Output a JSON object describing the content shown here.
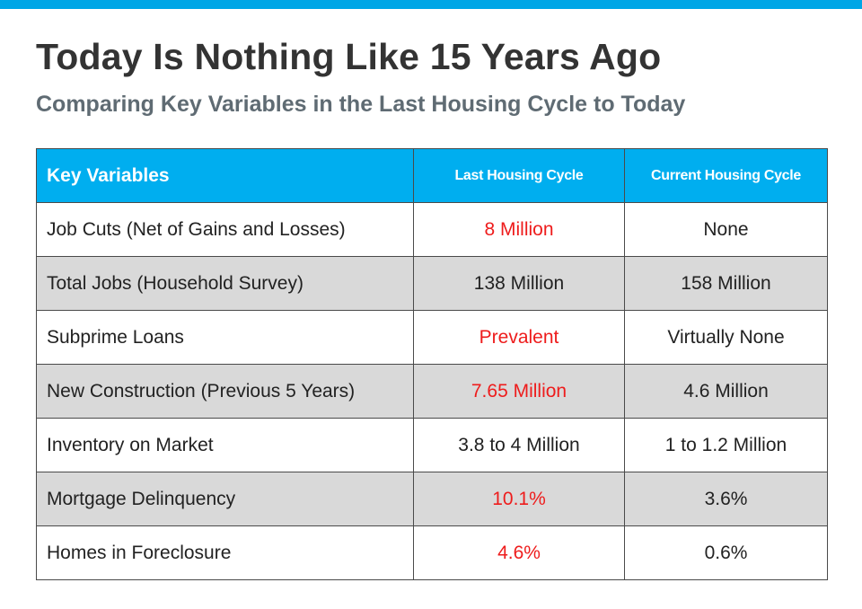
{
  "header": {
    "title": "Today Is Nothing Like 15 Years Ago",
    "subtitle": "Comparing Key Variables in the Last Housing Cycle to Today"
  },
  "colors": {
    "accent": "#00aeef",
    "highlight_red": "#ee1c1c",
    "row_shade": "#d9d9d9"
  },
  "table": {
    "headers": [
      "Key Variables",
      "Last Housing Cycle",
      "Current Housing Cycle"
    ],
    "rows": [
      {
        "label": "Job Cuts (Net of Gains and Losses)",
        "last": "8 Million",
        "current": "None"
      },
      {
        "label": "Total Jobs (Household Survey)",
        "last": "138 Million",
        "current": "158 Million"
      },
      {
        "label": "Subprime Loans",
        "last": "Prevalent",
        "current": "Virtually None"
      },
      {
        "label": "New Construction (Previous 5 Years)",
        "last": "7.65 Million",
        "current": "4.6 Million"
      },
      {
        "label": "Inventory on Market",
        "last": "3.8 to 4 Million",
        "current": "1 to 1.2 Million"
      },
      {
        "label": "Mortgage Delinquency",
        "last": "10.1%",
        "current": "3.6%"
      },
      {
        "label": "Homes in Foreclosure",
        "last": "4.6%",
        "current": "0.6%"
      }
    ]
  }
}
